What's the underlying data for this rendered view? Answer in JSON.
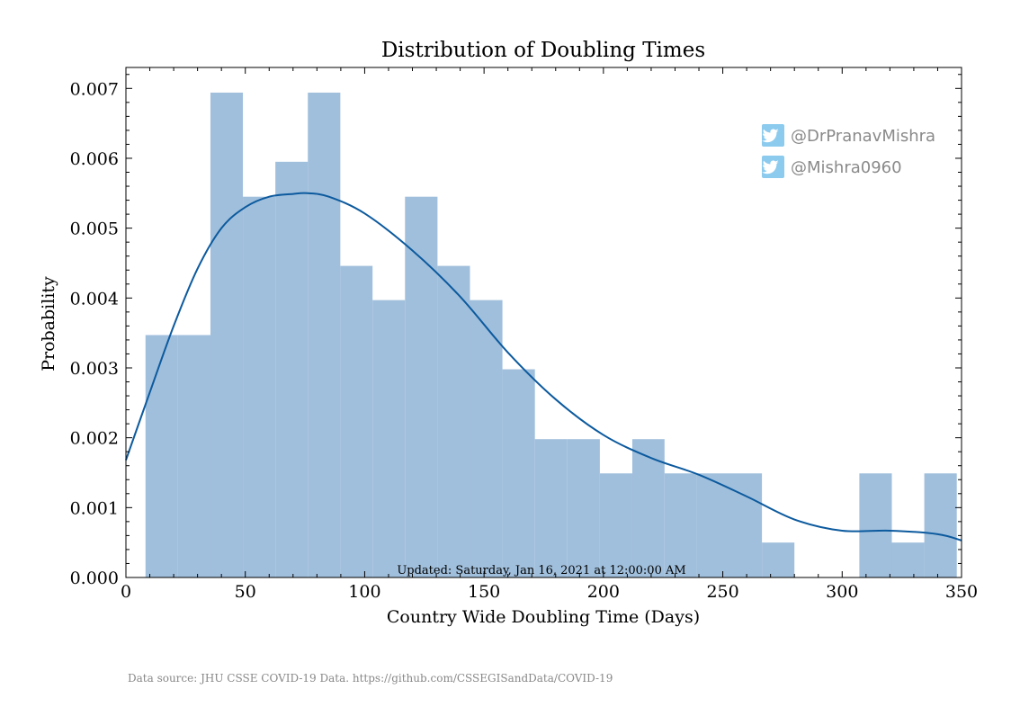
{
  "chart_data": {
    "type": "bar",
    "title": "Distribution of Doubling Times",
    "xlabel": "Country Wide Doubling Time (Days)",
    "ylabel": "Probability",
    "xlim": [
      0,
      350
    ],
    "ylim": [
      0,
      0.0073
    ],
    "x_ticks": [
      "0",
      "50",
      "100",
      "150",
      "200",
      "250",
      "300",
      "350"
    ],
    "y_ticks": [
      "0.000",
      "0.001",
      "0.002",
      "0.003",
      "0.004",
      "0.005",
      "0.006",
      "0.007"
    ],
    "bins": [
      {
        "x0": 8.2,
        "x1": 21.8,
        "value": 0.00347
      },
      {
        "x0": 21.8,
        "x1": 35.4,
        "value": 0.00347
      },
      {
        "x0": 35.4,
        "x1": 49.0,
        "value": 0.00694
      },
      {
        "x0": 49.0,
        "x1": 62.6,
        "value": 0.00545
      },
      {
        "x0": 62.6,
        "x1": 76.2,
        "value": 0.00595
      },
      {
        "x0": 76.2,
        "x1": 89.8,
        "value": 0.00694
      },
      {
        "x0": 89.8,
        "x1": 103.3,
        "value": 0.00446
      },
      {
        "x0": 103.3,
        "x1": 116.9,
        "value": 0.00397
      },
      {
        "x0": 116.9,
        "x1": 130.5,
        "value": 0.00545
      },
      {
        "x0": 130.5,
        "x1": 144.1,
        "value": 0.00446
      },
      {
        "x0": 144.1,
        "x1": 157.7,
        "value": 0.00397
      },
      {
        "x0": 157.7,
        "x1": 171.3,
        "value": 0.00298
      },
      {
        "x0": 171.3,
        "x1": 184.9,
        "value": 0.00198
      },
      {
        "x0": 184.9,
        "x1": 198.5,
        "value": 0.00198
      },
      {
        "x0": 198.5,
        "x1": 212.1,
        "value": 0.00149
      },
      {
        "x0": 212.1,
        "x1": 225.6,
        "value": 0.00198
      },
      {
        "x0": 225.6,
        "x1": 239.2,
        "value": 0.00149
      },
      {
        "x0": 239.2,
        "x1": 252.8,
        "value": 0.00149
      },
      {
        "x0": 252.8,
        "x1": 266.4,
        "value": 0.00149
      },
      {
        "x0": 266.4,
        "x1": 280.0,
        "value": 0.0005
      },
      {
        "x0": 280.0,
        "x1": 293.6,
        "value": 0
      },
      {
        "x0": 293.6,
        "x1": 307.2,
        "value": 0
      },
      {
        "x0": 307.2,
        "x1": 320.8,
        "value": 0.00149
      },
      {
        "x0": 320.8,
        "x1": 334.4,
        "value": 0.0005
      },
      {
        "x0": 334.4,
        "x1": 348.0,
        "value": 0.00149
      }
    ],
    "kde": {
      "x": [
        0,
        10,
        20,
        30,
        40,
        50,
        60,
        70,
        76,
        85,
        100,
        120,
        140,
        160,
        180,
        200,
        220,
        240,
        260,
        280,
        300,
        320,
        340,
        350
      ],
      "y": [
        0.00168,
        0.00265,
        0.0036,
        0.00442,
        0.005,
        0.0053,
        0.00545,
        0.00549,
        0.0055,
        0.00545,
        0.00521,
        0.00468,
        0.00402,
        0.00322,
        0.00255,
        0.00204,
        0.00171,
        0.00147,
        0.00116,
        0.00083,
        0.00067,
        0.00067,
        0.00062,
        0.00053
      ]
    },
    "bar_color": "#a0bfdc",
    "line_color": "#0c5a9e",
    "annotation": "Updated: Saturday, Jan 16, 2021 at 12:00:00 AM",
    "legend_position": "top-right",
    "legend": [
      {
        "icon": "twitter-icon",
        "label": "@DrPranavMishra"
      },
      {
        "icon": "twitter-icon",
        "label": "@Mishra0960"
      }
    ],
    "legend_icon_color": "#8ccbee"
  },
  "footer": {
    "source": "Data source: JHU CSSE COVID-19 Data. https://github.com/CSSEGISandData/COVID-19"
  }
}
